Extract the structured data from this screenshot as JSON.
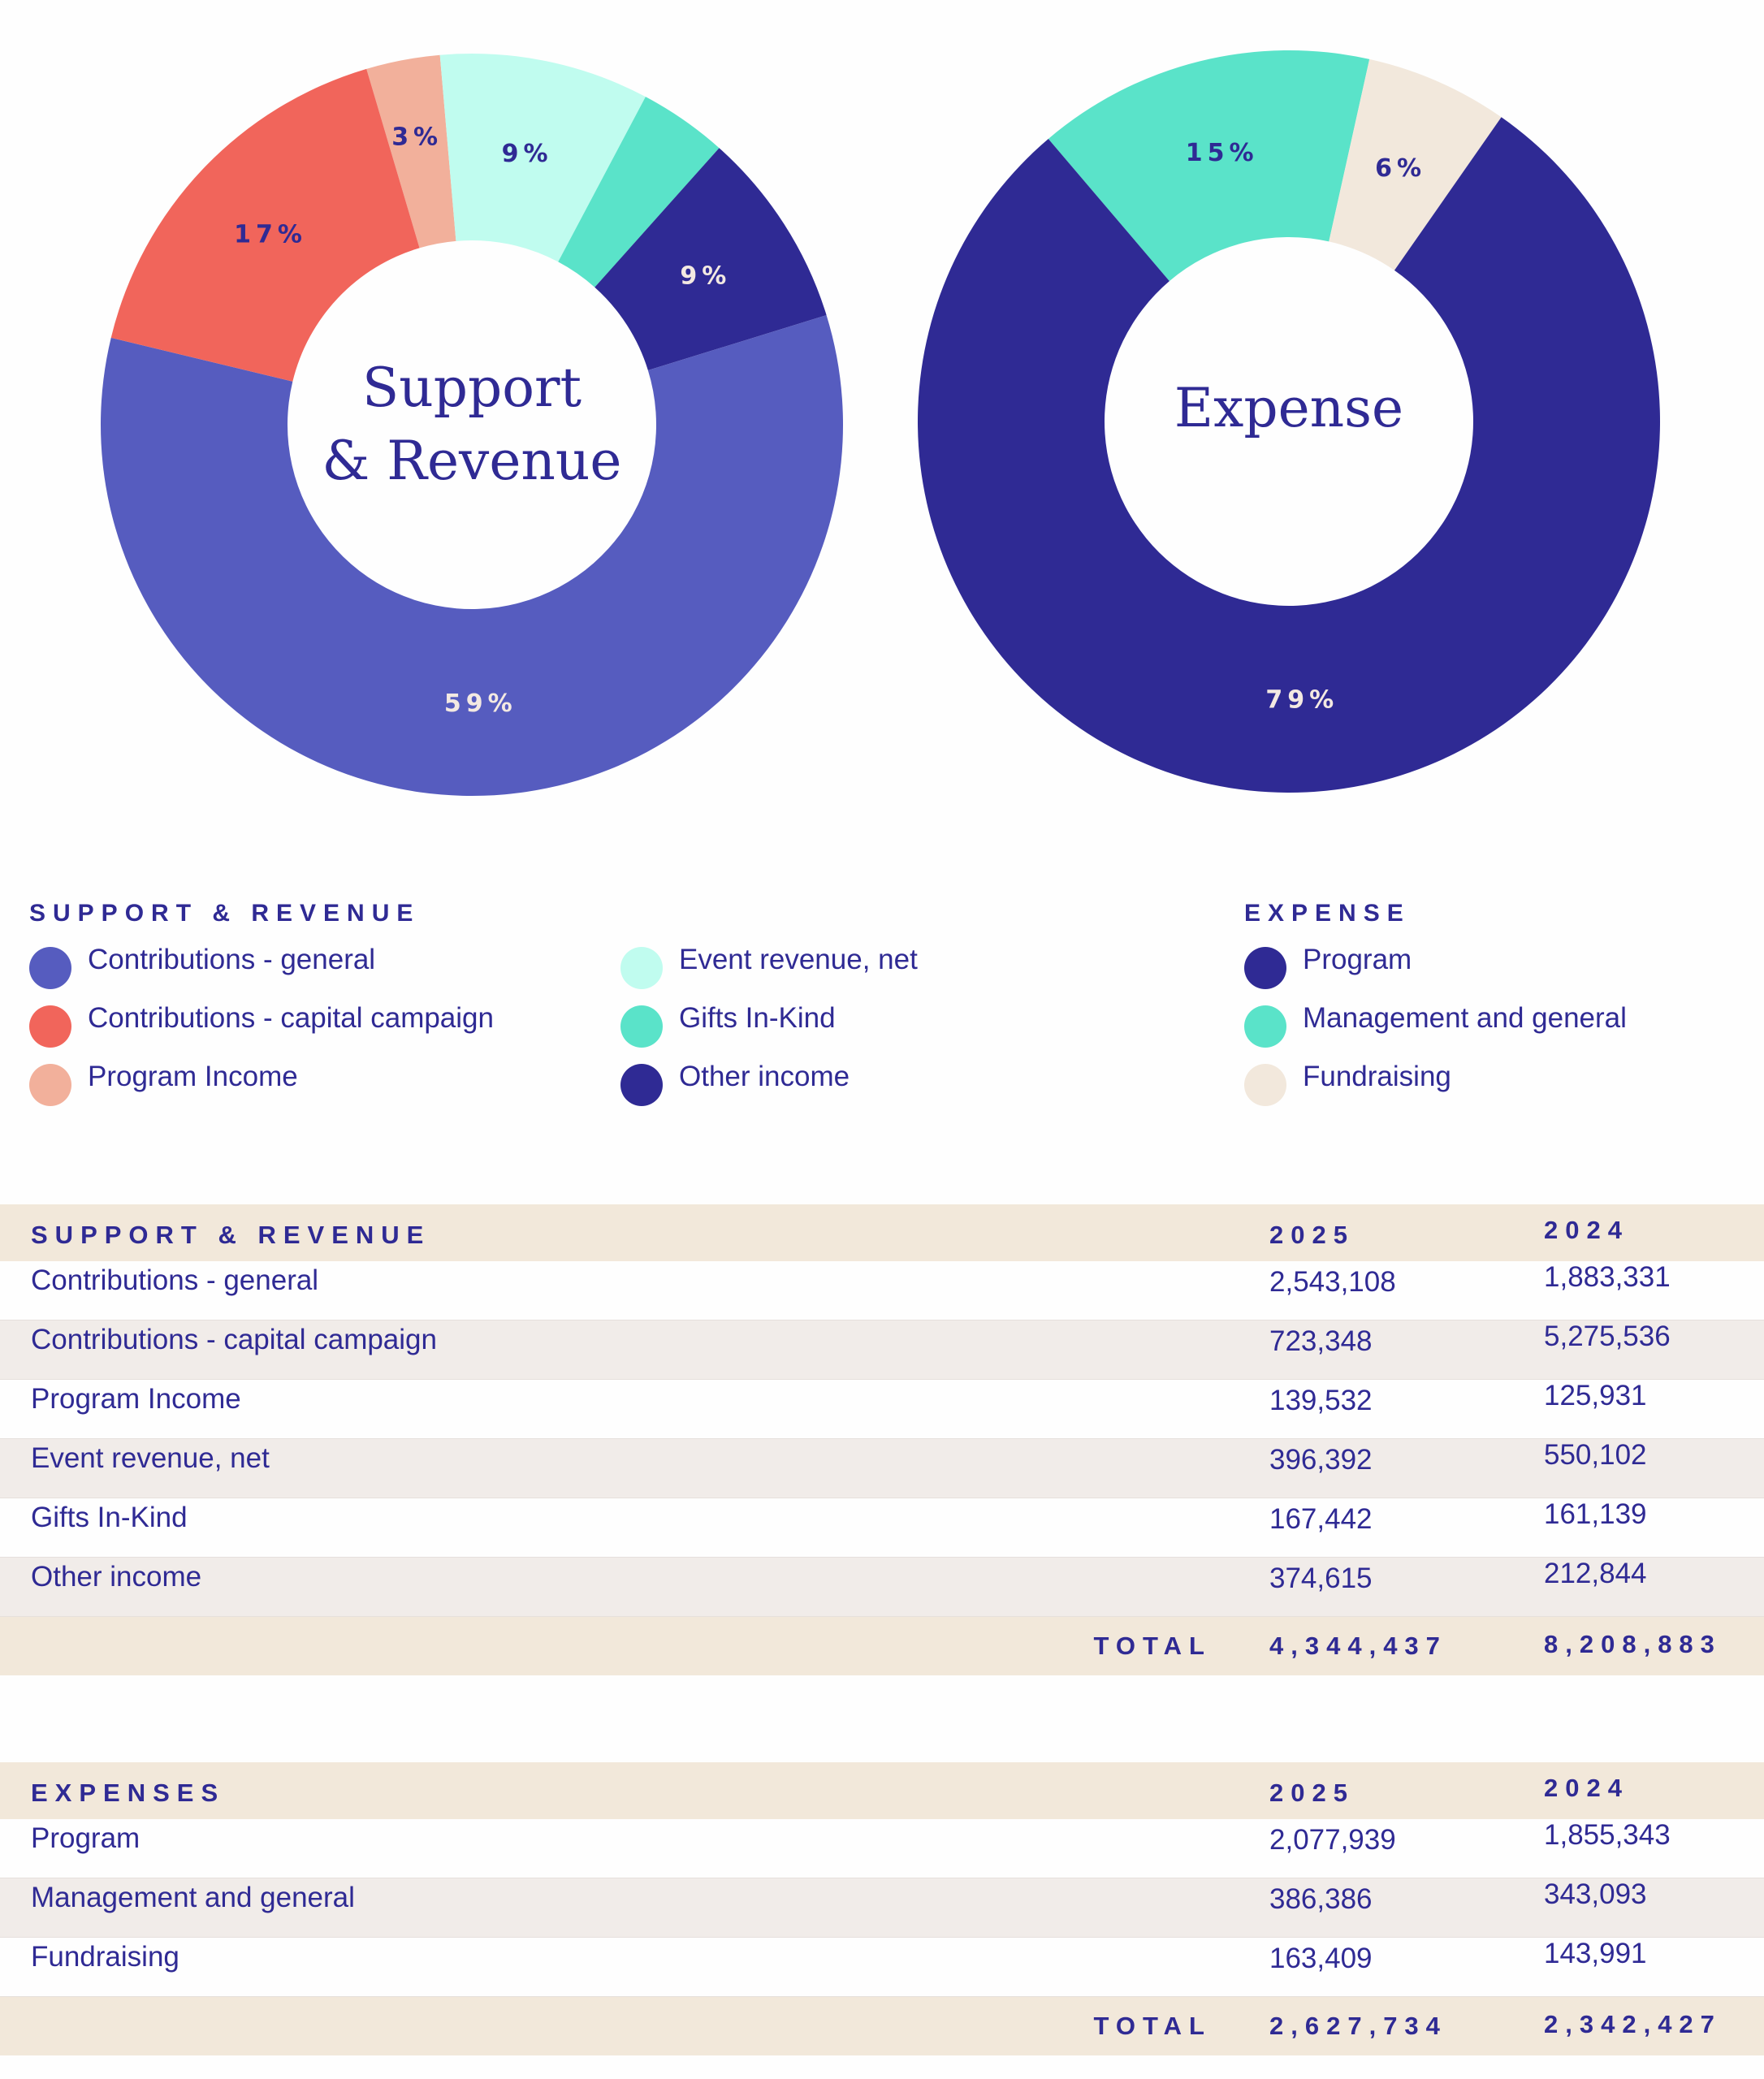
{
  "chart_data": [
    {
      "type": "pie",
      "title": "Support & Revenue",
      "title_lines": [
        "Support",
        "& Revenue"
      ],
      "categories": [
        "Contributions - general",
        "Contributions - capital campaign",
        "Program Income",
        "Event revenue, net",
        "Gifts In-Kind",
        "Other income"
      ],
      "values": [
        2543108,
        723348,
        139532,
        396392,
        167442,
        374615
      ],
      "labels": [
        "59%",
        "17%",
        "3%",
        "9%",
        "",
        "9%"
      ],
      "colors": [
        "#565cbf",
        "#f1655b",
        "#f2b09b",
        "#c0fcef",
        "#5ae3c9",
        "#2f2a94"
      ],
      "label_colors": [
        "#f3e9e2",
        "#2f2a94",
        "#2f2a94",
        "#2f2a94",
        "#2f2a94",
        "#f3e9e2"
      ]
    },
    {
      "type": "pie",
      "title": "Expense",
      "title_lines": [
        "Expense"
      ],
      "categories": [
        "Program",
        "Management and general",
        "Fundraising"
      ],
      "values": [
        2077939,
        386386,
        163409
      ],
      "labels": [
        "79%",
        "15%",
        "6%"
      ],
      "colors": [
        "#2f2a94",
        "#5ae3c9",
        "#f2e8dc"
      ],
      "label_colors": [
        "#f3e9e2",
        "#2f2a94",
        "#2f2a94"
      ]
    }
  ],
  "legend": {
    "support_title": "SUPPORT & REVENUE",
    "expense_title": "EXPENSE",
    "support_items": [
      "Contributions - general",
      "Contributions - capital campaign",
      "Program Income",
      "Event revenue, net",
      "Gifts In-Kind",
      "Other income"
    ],
    "expense_items": [
      "Program",
      "Management and general",
      "Fundraising"
    ]
  },
  "support_table": {
    "headers": [
      "SUPPORT & REVENUE",
      "2025",
      "2024"
    ],
    "rows": [
      [
        "Contributions - general",
        "2,543,108",
        "1,883,331"
      ],
      [
        "Contributions - capital campaign",
        "723,348",
        "5,275,536"
      ],
      [
        "Program Income",
        "139,532",
        "125,931"
      ],
      [
        "Event revenue, net",
        "396,392",
        "550,102"
      ],
      [
        "Gifts In-Kind",
        "167,442",
        "161,139"
      ],
      [
        "Other income",
        "374,615",
        "212,844"
      ]
    ],
    "total": [
      "TOTAL",
      "4,344,437",
      "8,208,883"
    ]
  },
  "expense_table": {
    "headers": [
      "EXPENSES",
      "2025",
      "2024"
    ],
    "rows": [
      [
        "Program",
        "2,077,939",
        "1,855,343"
      ],
      [
        "Management and general",
        "386,386",
        "343,093"
      ],
      [
        "Fundraising",
        "163,409",
        "143,991"
      ]
    ],
    "total": [
      "TOTAL",
      "2,627,734",
      "2,342,427"
    ]
  }
}
